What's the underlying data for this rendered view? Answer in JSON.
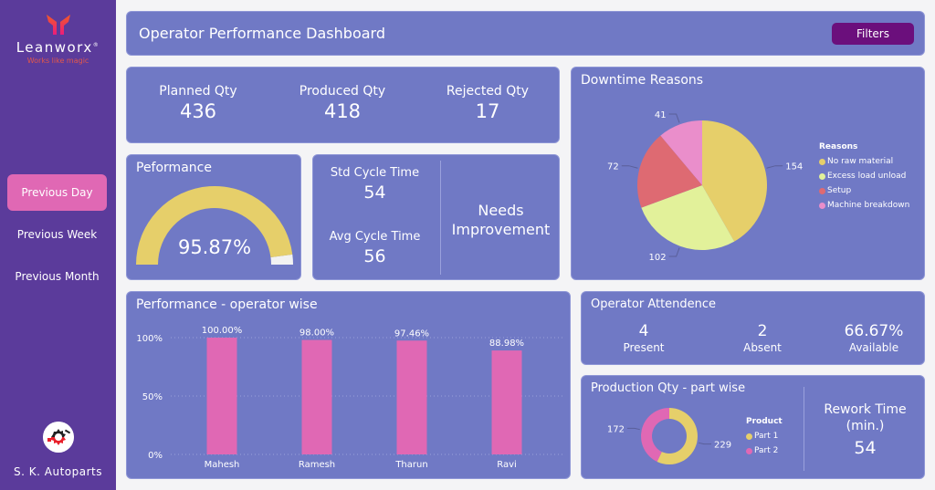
{
  "brand": {
    "name": "Leanworx",
    "tagline": "Works like magic",
    "logo_colors": [
      "#f05a28",
      "#ec1c7b"
    ]
  },
  "sidebar": {
    "items": [
      {
        "label": "Previous Day",
        "active": true
      },
      {
        "label": "Previous Week",
        "active": false
      },
      {
        "label": "Previous Month",
        "active": false
      }
    ],
    "company_name": "S. K. Autoparts",
    "company_logo_icon": "gear-wrench-icon"
  },
  "header": {
    "title": "Operator Performance Dashboard",
    "filters_label": "Filters"
  },
  "kpi": {
    "planned": {
      "label": "Planned Qty",
      "value": "436"
    },
    "produced": {
      "label": "Produced Qty",
      "value": "418"
    },
    "rejected": {
      "label": "Rejected Qty",
      "value": "17"
    }
  },
  "performance": {
    "title": "Peformance",
    "value_text": "95.87%",
    "fraction": 0.9587
  },
  "cycle": {
    "std": {
      "label": "Std Cycle Time",
      "value": "54"
    },
    "avg": {
      "label": "Avg Cycle Time",
      "value": "56"
    },
    "status_line1": "Needs",
    "status_line2": "Improvement"
  },
  "attendance": {
    "title": "Operator Attendence",
    "present": {
      "value": "4",
      "label": "Present"
    },
    "absent": {
      "value": "2",
      "label": "Absent"
    },
    "available": {
      "value": "66.67%",
      "label": "Available"
    }
  },
  "production_part": {
    "title": "Production Qty - part wise",
    "rework_label_line1": "Rework Time",
    "rework_label_line2": "(min.)",
    "rework_value": "54"
  },
  "colors": {
    "sidebar": "#5b3b9b",
    "card": "#7079c5",
    "active_nav": "#e068b4",
    "filters_button": "#6b0f7c",
    "gauge_fill": "#e6cf6a",
    "gauge_track": "#f2f2f2",
    "bar": "#e068b4"
  },
  "chart_data": [
    {
      "type": "pie",
      "title": "Downtime Reasons",
      "legend_title": "Reasons",
      "legend_position": "right",
      "categories": [
        "No raw material",
        "Excess load unload",
        "Setup",
        "Machine breakdown"
      ],
      "values": [
        154,
        102,
        72,
        41
      ],
      "colors": [
        "#e6cf6a",
        "#e2f19a",
        "#de6a72",
        "#ea8ecb"
      ]
    },
    {
      "type": "bar",
      "title": "Performance - operator wise",
      "categories": [
        "Mahesh",
        "Ramesh",
        "Tharun",
        "Ravi"
      ],
      "values": [
        100.0,
        98.0,
        97.46,
        88.98
      ],
      "value_labels": [
        "100.00%",
        "98.00%",
        "97.46%",
        "88.98%"
      ],
      "yticks": [
        "0%",
        "50%",
        "100%"
      ],
      "ytick_values": [
        0,
        50,
        100
      ],
      "ylim": [
        0,
        100
      ],
      "grid": true,
      "xlabel": "",
      "ylabel": ""
    },
    {
      "type": "pie",
      "donut": true,
      "title": "Production Qty - part wise",
      "legend_title": "Product",
      "legend_position": "right",
      "categories": [
        "Part 1",
        "Part 2"
      ],
      "values": [
        229,
        172
      ],
      "colors": [
        "#e6cf6a",
        "#e068b4"
      ]
    }
  ]
}
